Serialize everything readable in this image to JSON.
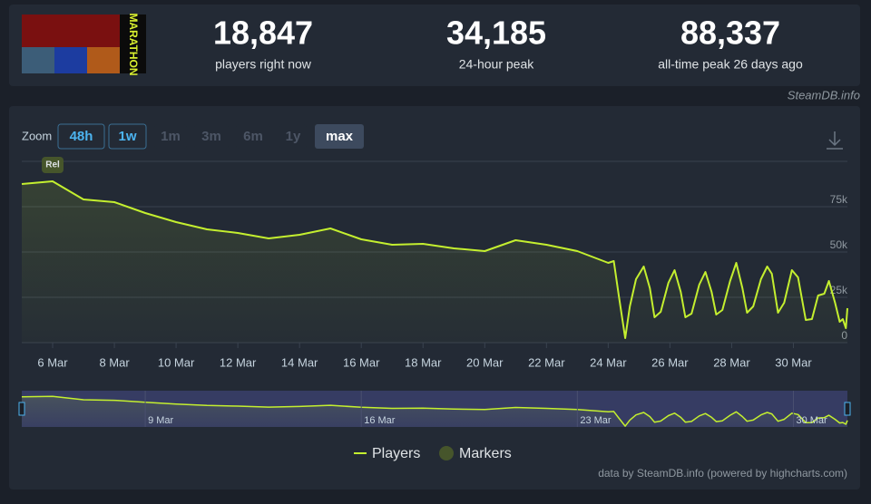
{
  "header": {
    "logo_text": "MARATHON",
    "stats": [
      {
        "value": "18,847",
        "label": "players right now"
      },
      {
        "value": "34,185",
        "label": "24-hour peak"
      },
      {
        "value": "88,337",
        "label": "all-time peak 26 days ago"
      }
    ],
    "source": "SteamDB.info"
  },
  "zoom": {
    "label": "Zoom",
    "buttons": [
      "48h",
      "1w",
      "1m",
      "3m",
      "6m",
      "1y",
      "max"
    ]
  },
  "chart_data": {
    "type": "line",
    "x": [
      5,
      6,
      7,
      8,
      9,
      10,
      11,
      12,
      13,
      14,
      15,
      16,
      17,
      18,
      19,
      20,
      21,
      22,
      23,
      24,
      24.18,
      24.35,
      24.55,
      24.7,
      24.9,
      25.15,
      25.35,
      25.5,
      25.7,
      25.95,
      26.15,
      26.35,
      26.5,
      26.7,
      26.95,
      27.15,
      27.35,
      27.5,
      27.7,
      27.95,
      28.15,
      28.35,
      28.5,
      28.7,
      28.95,
      29.15,
      29.3,
      29.5,
      29.7,
      29.95,
      30.15,
      30.4,
      30.6,
      30.8,
      31,
      31.15,
      31.35,
      31.5,
      31.6,
      31.7,
      31.75
    ],
    "series": [
      {
        "name": "Players",
        "color": "#c4ef2f",
        "values": [
          87500,
          89000,
          79000,
          77500,
          71500,
          66500,
          62500,
          60500,
          57500,
          59500,
          63000,
          57000,
          54000,
          54500,
          52000,
          50500,
          56500,
          54000,
          50500,
          44000,
          45000,
          25000,
          2500,
          20000,
          35000,
          42000,
          30000,
          14000,
          17000,
          33000,
          40000,
          28000,
          14000,
          16000,
          32000,
          39000,
          28000,
          15500,
          18000,
          34000,
          44000,
          30000,
          16500,
          20000,
          35000,
          42000,
          38000,
          16500,
          22000,
          40000,
          36000,
          12500,
          13000,
          26000,
          27000,
          34000,
          22000,
          11500,
          13000,
          8000,
          19000
        ]
      }
    ],
    "markers": {
      "name": "Markers",
      "color": "#46552b",
      "items": [
        {
          "x": 6,
          "label": "Rel"
        }
      ]
    },
    "xlim": [
      5,
      31.75
    ],
    "ylim": [
      0,
      100000
    ],
    "xticks": [
      {
        "value": 6,
        "label": "6 Mar"
      },
      {
        "value": 8,
        "label": "8 Mar"
      },
      {
        "value": 10,
        "label": "10 Mar"
      },
      {
        "value": 12,
        "label": "12 Mar"
      },
      {
        "value": 14,
        "label": "14 Mar"
      },
      {
        "value": 16,
        "label": "16 Mar"
      },
      {
        "value": 18,
        "label": "18 Mar"
      },
      {
        "value": 20,
        "label": "20 Mar"
      },
      {
        "value": 22,
        "label": "22 Mar"
      },
      {
        "value": 24,
        "label": "24 Mar"
      },
      {
        "value": 26,
        "label": "26 Mar"
      },
      {
        "value": 28,
        "label": "28 Mar"
      },
      {
        "value": 30,
        "label": "30 Mar"
      }
    ],
    "yticks": [
      0,
      {
        "value": 25000,
        "label": "25k"
      },
      {
        "value": 50000,
        "label": "50k"
      },
      {
        "value": 75000,
        "label": "75k"
      }
    ],
    "grid": true,
    "navigator_xticks": [
      {
        "value": 9,
        "label": "9 Mar"
      },
      {
        "value": 16,
        "label": "16 Mar"
      },
      {
        "value": 23,
        "label": "23 Mar"
      },
      {
        "value": 30,
        "label": "30 Mar"
      }
    ],
    "credits": "data by SteamDB.info (powered by highcharts.com)"
  }
}
